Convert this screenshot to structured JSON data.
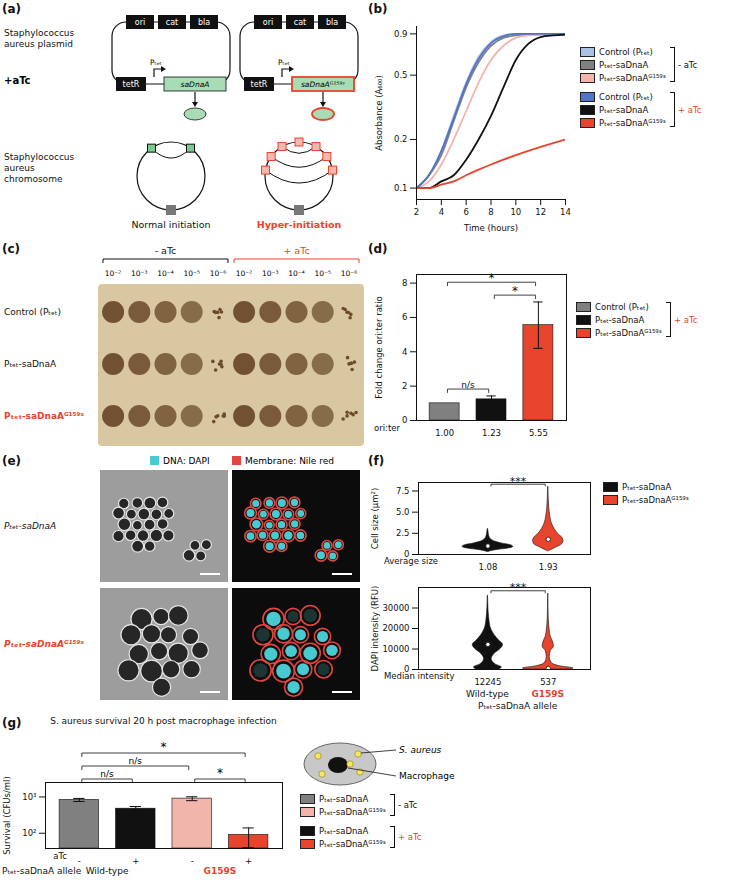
{
  "chart_data": [
    {
      "panel": "(b)",
      "type": "line",
      "x_label": "Time (hours)",
      "y_label": "Absorbance (A₆₀₀)",
      "x": [
        2,
        3,
        4,
        5,
        6,
        7,
        8,
        9,
        10,
        11,
        12,
        13,
        14
      ],
      "xlim": [
        2,
        14
      ],
      "xticks": [
        2,
        4,
        6,
        8,
        10,
        12,
        14
      ],
      "ylim": [
        0.085,
        1
      ],
      "yticks": [
        0.1,
        0.2,
        0.5,
        0.9
      ],
      "log": "y",
      "legend": "right",
      "series": [
        {
          "name": "Control (Pₜₑₜ)",
          "group": "- aTc",
          "color": "#a8c3e6",
          "values": [
            0.1,
            0.12,
            0.17,
            0.28,
            0.45,
            0.65,
            0.8,
            0.88,
            0.9,
            0.9,
            0.9,
            0.9,
            0.9
          ]
        },
        {
          "name": "Pₜₑₜ-saDnaA",
          "group": "- aTc",
          "color": "#808080",
          "values": [
            0.1,
            0.12,
            0.16,
            0.26,
            0.42,
            0.6,
            0.76,
            0.85,
            0.88,
            0.89,
            0.89,
            0.89,
            0.89
          ]
        },
        {
          "name": "Pₜₑₜ-saDnaAᴳ¹⁵⁹ˢ",
          "group": "- aTc",
          "color": "#f2b5ac",
          "values": [
            0.1,
            0.11,
            0.14,
            0.2,
            0.3,
            0.45,
            0.62,
            0.76,
            0.85,
            0.88,
            0.89,
            0.89,
            0.89
          ]
        },
        {
          "name": "Control (Pₜₑₜ)",
          "group": "+ aTc",
          "color": "#4f74c9",
          "values": [
            0.1,
            0.12,
            0.17,
            0.27,
            0.44,
            0.63,
            0.79,
            0.87,
            0.9,
            0.9,
            0.9,
            0.9,
            0.9
          ]
        },
        {
          "name": "Pₜₑₜ-saDnaA",
          "group": "+ aTc",
          "color": "#111111",
          "values": [
            0.1,
            0.1,
            0.11,
            0.12,
            0.15,
            0.2,
            0.28,
            0.42,
            0.62,
            0.78,
            0.86,
            0.88,
            0.89
          ]
        },
        {
          "name": "Pₜₑₜ-saDnaAᴳ¹⁵⁹ˢ",
          "group": "+ aTc",
          "color": "#e8432d",
          "values": [
            0.1,
            0.1,
            0.105,
            0.11,
            0.12,
            0.13,
            0.14,
            0.15,
            0.16,
            0.17,
            0.18,
            0.19,
            0.2
          ]
        }
      ]
    },
    {
      "panel": "(d)",
      "type": "bar",
      "y_label": "Fold change ori:ter ratio",
      "x_label": "ori:ter",
      "categories": [
        "Control (Pₜₑₜ)",
        "Pₜₑₜ-saDnaA",
        "Pₜₑₜ-saDnaAᴳ¹⁵⁹ˢ"
      ],
      "values": [
        1.0,
        1.23,
        5.55
      ],
      "value_labels": [
        "1.00",
        "1.23",
        "5.55"
      ],
      "errors": [
        0,
        0.2,
        1.35
      ],
      "colors": [
        "#808080",
        "#111111",
        "#e8432d"
      ],
      "ylim": [
        0,
        8.5
      ],
      "yticks": [
        0,
        2,
        4,
        6,
        8
      ],
      "legend": "right",
      "legend_group": "+ aTc",
      "annotations": [
        {
          "from": 0,
          "to": 1,
          "label": "n/s"
        },
        {
          "from": 1,
          "to": 2,
          "label": "*"
        },
        {
          "from": 0,
          "to": 2,
          "label": "*"
        }
      ]
    },
    {
      "panel": "(f)",
      "type": "violin",
      "y_label": "Cell size (μm²)",
      "categories": [
        "Pₜₑₜ-saDnaA",
        "Pₜₑₜ-saDnaAᴳ¹⁵⁹ˢ"
      ],
      "colors": [
        "#111111",
        "#e8432d"
      ],
      "violins": [
        {
          "y": [
            0.3,
            0.5,
            0.7,
            0.9,
            1.1,
            1.3,
            1.5,
            1.8,
            2.1,
            2.5,
            3.0
          ],
          "density": [
            0.02,
            0.3,
            0.8,
            1.0,
            0.9,
            0.55,
            0.3,
            0.12,
            0.06,
            0.03,
            0.01
          ]
        },
        {
          "y": [
            0.4,
            0.8,
            1.2,
            1.6,
            2.0,
            2.4,
            3.0,
            3.6,
            4.5,
            5.5,
            6.5,
            7.5,
            8.0
          ],
          "density": [
            0.03,
            0.3,
            0.55,
            0.6,
            0.55,
            0.4,
            0.25,
            0.15,
            0.08,
            0.04,
            0.02,
            0.01,
            0.005
          ]
        }
      ],
      "medians": [
        1.0,
        1.8
      ],
      "stat_label": "Average size",
      "stat_values": [
        1.08,
        1.93
      ],
      "ylim": [
        0,
        8.5
      ],
      "yticks": [
        0,
        2.5,
        {
          "value": 5,
          "label": "5.0"
        },
        7.5
      ],
      "legend": "right",
      "annotations": [
        {
          "from": 0,
          "to": 1,
          "label": "***"
        }
      ]
    },
    {
      "type": "violin",
      "y_label": "DAPI intensity (RFU)",
      "categories": [
        "Pₜₑₜ-saDnaA",
        "Pₜₑₜ-saDnaAᴳ¹⁵⁹ˢ"
      ],
      "colors": [
        "#111111",
        "#e8432d"
      ],
      "violins": [
        {
          "y": [
            0,
            1000,
            2500,
            5000,
            7500,
            10000,
            12000,
            14000,
            17000,
            20000,
            25000,
            30000,
            36000
          ],
          "density": [
            0.45,
            0.55,
            0.3,
            0.15,
            0.25,
            0.5,
            0.6,
            0.45,
            0.25,
            0.12,
            0.05,
            0.02,
            0.005
          ]
        },
        {
          "y": [
            0,
            500,
            1500,
            3000,
            6000,
            9000,
            11000,
            13000,
            16000,
            20000,
            25000,
            30000,
            37000
          ],
          "density": [
            0.9,
            1.0,
            0.5,
            0.15,
            0.06,
            0.1,
            0.22,
            0.2,
            0.1,
            0.05,
            0.02,
            0.01,
            0.004
          ]
        }
      ],
      "medians": [
        12245,
        537
      ],
      "stat_label": "Median intensity",
      "stat_values": [
        12245,
        537
      ],
      "x_label": "Pₜₑₜ-saDnaA allele",
      "x_tick_labels": [
        "Wild-type",
        "G159S"
      ],
      "ylim": [
        0,
        40000
      ],
      "yticks": [
        0,
        10000,
        20000,
        30000
      ],
      "annotations": [
        {
          "from": 0,
          "to": 1,
          "label": "***"
        }
      ]
    },
    {
      "panel": "(g)",
      "type": "bar",
      "title": "S. aureus survival 20 h post macrophage infection",
      "y_label": "Survival (CFUs/ml)",
      "x_label": "aTc",
      "categories": [
        "-",
        "+",
        "-",
        "+"
      ],
      "groups": [
        {
          "label": "Wild-type",
          "categories": [
            0,
            1
          ]
        },
        {
          "label": "G159S",
          "categories": [
            2,
            3
          ]
        }
      ],
      "group_label": "Pₜₑₜ-saDnaA allele",
      "values": [
        830,
        475,
        900,
        90
      ],
      "errors": [
        80,
        70,
        110,
        50
      ],
      "colors": [
        "#808080",
        "#111111",
        "#f2b5ac",
        "#e8432d"
      ],
      "log": "y",
      "ylim": [
        38,
        2500
      ],
      "yticks": [
        {
          "value": 100,
          "label": "10²"
        },
        {
          "value": 1000,
          "label": "10³"
        }
      ],
      "legend": "right",
      "legend_entries": [
        {
          "name": "Pₜₑₜ-saDnaA",
          "color": "#808080",
          "group": "- aTc"
        },
        {
          "name": "Pₜₑₜ-saDnaAᴳ¹⁵⁹ˢ",
          "color": "#f2b5ac",
          "group": "- aTc"
        },
        {
          "name": "Pₜₑₜ-saDnaA",
          "color": "#111111",
          "group": "+ aTc"
        },
        {
          "name": "Pₜₑₜ-saDnaAᴳ¹⁵⁹ˢ",
          "color": "#e8432d",
          "group": "+ aTc"
        }
      ],
      "annotations": [
        {
          "from": 0,
          "to": 1,
          "label": "n/s"
        },
        {
          "from": 2,
          "to": 3,
          "label": "*"
        },
        {
          "from": 0,
          "to": 2,
          "label": "n/s"
        },
        {
          "from": 0,
          "to": 3,
          "label": "*"
        }
      ]
    }
  ],
  "diagrams": {
    "a": {
      "panel": "(a)",
      "plasmid_title": "Staphylococcus aureus plasmid",
      "chromosome_title": "Staphylococcus aureus chromosome",
      "inducer": "+aTc",
      "plasmid_genes": [
        "ori",
        "cat",
        "bla"
      ],
      "repressor": "tetR",
      "promoter": "Pₜₑₜ",
      "plasmids": [
        {
          "gene": "saDnaA",
          "outcome": "Normal initiation"
        },
        {
          "gene": "saDnaAᴳ¹⁵⁹ˢ",
          "outcome": "Hyper-initiation"
        }
      ]
    },
    "c": {
      "panel": "(c)",
      "conditions": [
        "- aTc",
        "+ aTc"
      ],
      "dilutions": [
        "10⁻²",
        "10⁻³",
        "10⁻⁴",
        "10⁻⁵",
        "10⁻⁶"
      ],
      "strains": [
        "Control (Pₜₑₜ)",
        "Pₜₑₜ-saDnaA",
        "Pₜₑₜ-saDnaAᴳ¹⁵⁹ˢ"
      ]
    },
    "e": {
      "panel": "(e)",
      "stains": [
        "DNA: DAPI",
        "Membrane: Nile red"
      ],
      "rows": [
        "Pₜₑₜ-saDnaA",
        "Pₜₑₜ-saDnaAᴳ¹⁵⁹ˢ"
      ]
    },
    "g": {
      "bacterium": "S. aureus",
      "host": "Macrophage"
    }
  }
}
